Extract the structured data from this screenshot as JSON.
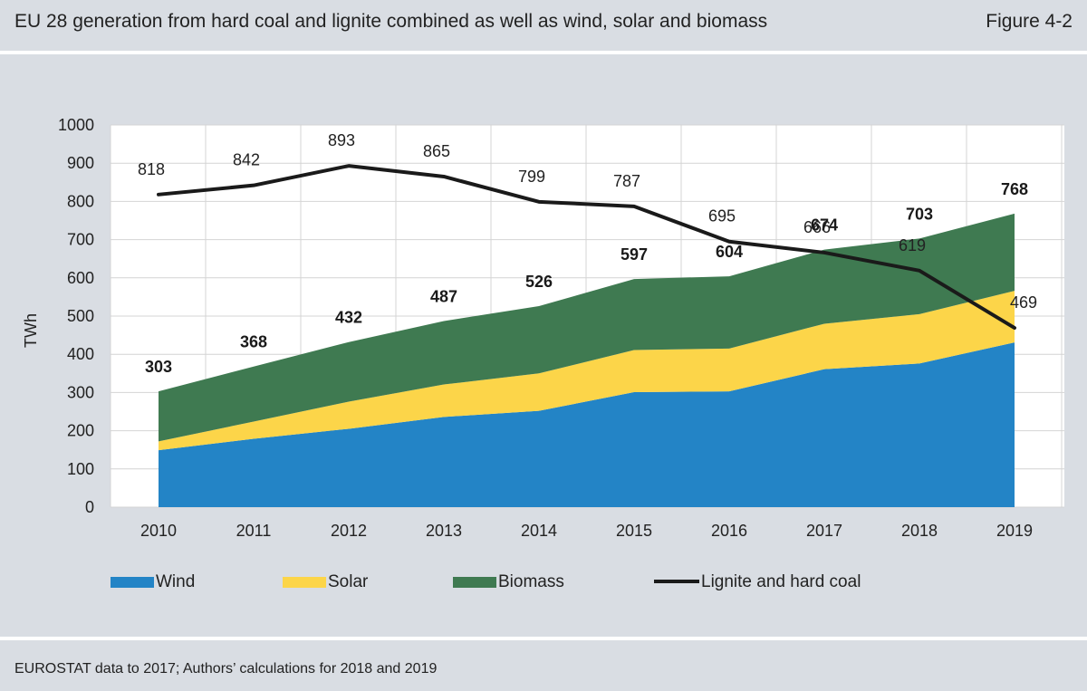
{
  "header": {
    "title": "EU 28 generation from hard coal and lignite combined as well as wind, solar and biomass",
    "figure_label": "Figure 4-2"
  },
  "footer": {
    "source": "EUROSTAT data to 2017; Authors’ calculations for 2018 and 2019"
  },
  "colors": {
    "wind": "#2384c6",
    "solar": "#fcd549",
    "biomass": "#3f7a51",
    "coal": "#1a1a1a",
    "background": "#d9dde3",
    "plot_background": "#ffffff"
  },
  "chart_data": {
    "type": "area",
    "title": "EU 28 generation from hard coal and lignite combined as well as wind, solar and biomass",
    "ylabel": "TWh",
    "xlabel": "",
    "ylim": [
      0,
      1000
    ],
    "yticks": [
      0,
      100,
      200,
      300,
      400,
      500,
      600,
      700,
      800,
      900,
      1000
    ],
    "categories": [
      "2010",
      "2011",
      "2012",
      "2013",
      "2014",
      "2015",
      "2016",
      "2017",
      "2018",
      "2019"
    ],
    "grid": true,
    "legend_position": "bottom",
    "stacked_series": [
      {
        "name": "Wind",
        "color_key": "wind",
        "values": [
          149,
          179,
          205,
          236,
          252,
          301,
          303,
          361,
          376,
          431
        ]
      },
      {
        "name": "Solar",
        "color_key": "solar",
        "values": [
          23,
          45,
          71,
          85,
          98,
          110,
          112,
          119,
          129,
          135
        ]
      },
      {
        "name": "Biomass",
        "color_key": "biomass",
        "values": [
          131,
          144,
          156,
          166,
          176,
          186,
          189,
          194,
          198,
          202
        ]
      }
    ],
    "stack_totals": [
      "303",
      "368",
      "432",
      "487",
      "526",
      "597",
      "604",
      "674",
      "703",
      "768"
    ],
    "line_series": {
      "name": "Lignite and hard coal",
      "color_key": "coal",
      "values": [
        818,
        842,
        893,
        865,
        799,
        787,
        695,
        666,
        619,
        469
      ],
      "labels": [
        "818",
        "842",
        "893",
        "865",
        "799",
        "787",
        "695",
        "666",
        "619",
        "469"
      ]
    },
    "legend": [
      "Wind",
      "Solar",
      "Biomass",
      "Lignite and hard coal"
    ]
  }
}
